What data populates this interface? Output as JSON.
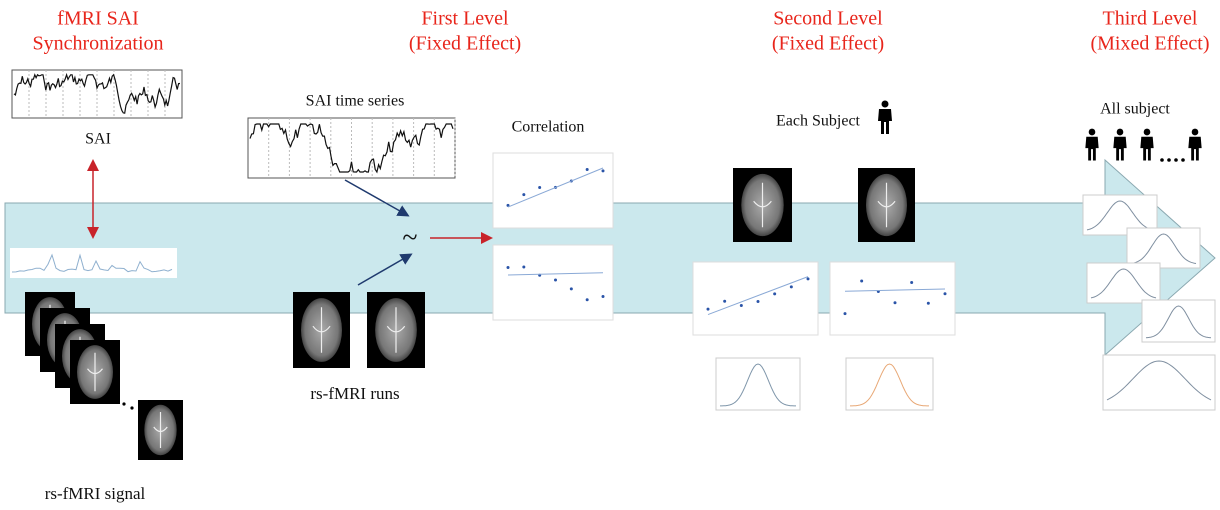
{
  "stages": [
    {
      "lines": [
        "fMRI SAI",
        "Synchronization"
      ]
    },
    {
      "lines": [
        "First Level",
        "(Fixed Effect)"
      ]
    },
    {
      "lines": [
        "Second Level",
        "(Fixed Effect)"
      ]
    },
    {
      "lines": [
        "Third Level",
        "(Mixed Effect)"
      ]
    }
  ],
  "labels": {
    "sai": "SAI",
    "sai_time_series": "SAI time series",
    "correlation": "Correlation",
    "each_subject": "Each Subject",
    "all_subject": "All subject",
    "rs_fmri_runs": "rs-fMRI runs",
    "rs_fmri_signal": "rs-fMRI signal",
    "similarity": "~"
  }
}
